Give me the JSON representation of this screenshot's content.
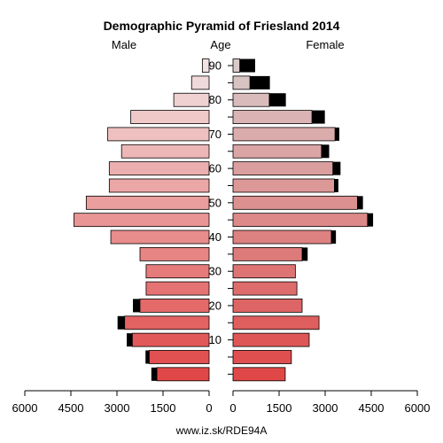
{
  "chart_data": {
    "type": "bar",
    "title": "Demographic Pyramid of Friesland 2014",
    "left_label": "Male",
    "center_label": "Age",
    "right_label": "Female",
    "footer": "www.iz.sk/RDE94A",
    "x_ticks_male": [
      "6000",
      "4500",
      "3000",
      "1500",
      "0"
    ],
    "x_ticks_female": [
      "0",
      "1500",
      "3000",
      "4500",
      "6000"
    ],
    "xlim": [
      0,
      6000
    ],
    "age_ticks": [
      "10",
      "20",
      "30",
      "40",
      "50",
      "60",
      "70",
      "80",
      "90"
    ],
    "categories": [
      "0-4",
      "5-9",
      "10-14",
      "15-19",
      "20-24",
      "25-29",
      "30-34",
      "35-39",
      "40-44",
      "45-49",
      "50-54",
      "55-59",
      "60-64",
      "65-69",
      "70-74",
      "75-79",
      "80-84",
      "85-89",
      "90+"
    ],
    "series": [
      {
        "name": "Male",
        "values": [
          1700,
          1950,
          2500,
          2750,
          2250,
          2050,
          2050,
          2250,
          3200,
          4400,
          4000,
          3250,
          3250,
          2850,
          3300,
          2550,
          1150,
          570,
          220
        ],
        "excess": [
          180,
          120,
          180,
          230,
          230,
          0,
          0,
          0,
          0,
          0,
          0,
          0,
          0,
          0,
          0,
          0,
          0,
          0,
          0
        ]
      },
      {
        "name": "Female",
        "values": [
          1700,
          1900,
          2480,
          2800,
          2250,
          2080,
          2030,
          2250,
          3200,
          4380,
          4050,
          3300,
          3250,
          2880,
          3320,
          2570,
          1180,
          550,
          220
        ],
        "excess": [
          0,
          0,
          0,
          0,
          0,
          0,
          0,
          180,
          150,
          180,
          180,
          130,
          250,
          250,
          140,
          420,
          540,
          650,
          500
        ]
      }
    ]
  }
}
